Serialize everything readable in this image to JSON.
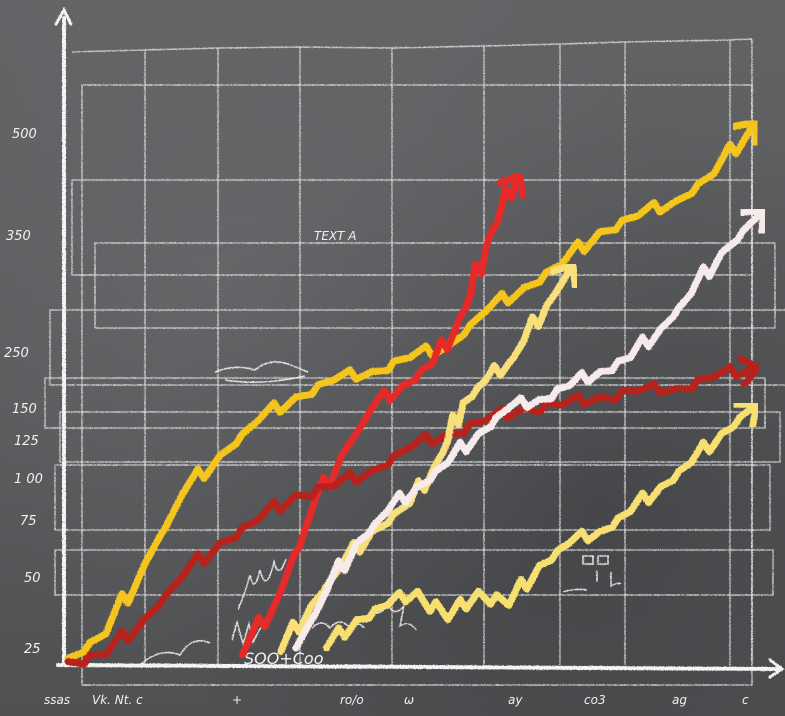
{
  "chart_data": {
    "type": "line",
    "style": "hand-drawn chalkboard",
    "background_color": "#5a5b5d",
    "grid": true,
    "legend": "none",
    "y_ticks": [
      {
        "label": "500",
        "value": 500
      },
      {
        "label": "350",
        "value": 350
      },
      {
        "label": "250",
        "value": 250
      },
      {
        "label": "150",
        "value": 150
      },
      {
        "label": "125",
        "value": 125
      },
      {
        "label": "1 00",
        "value": 100
      },
      {
        "label": "75",
        "value": 75
      },
      {
        "label": "50",
        "value": 50
      },
      {
        "label": "25",
        "value": 25
      }
    ],
    "x_tick_labels": [
      "ssas",
      "Vk. Nt. c",
      "+",
      "ro/o",
      "ω",
      "ay",
      "co3",
      "ag",
      "c"
    ],
    "annotations": [
      "TEXT A",
      "SOO+Coo"
    ],
    "series": [
      {
        "color": "#f4c51c",
        "arrow": true,
        "points": [
          [
            0,
            10
          ],
          [
            0.5,
            30
          ],
          [
            1,
            55
          ],
          [
            1.5,
            90
          ],
          [
            2,
            115
          ],
          [
            2.5,
            140
          ],
          [
            3,
            170
          ],
          [
            3.5,
            200
          ],
          [
            4,
            215
          ],
          [
            4.5,
            240
          ],
          [
            5,
            255
          ],
          [
            5.5,
            285
          ],
          [
            6,
            305
          ],
          [
            6.5,
            325
          ],
          [
            7,
            355
          ],
          [
            7.5,
            378
          ],
          [
            8,
            400
          ],
          [
            8.5,
            440
          ],
          [
            9,
            510
          ]
        ]
      },
      {
        "color": "#e62a2a",
        "arrow": true,
        "points": [
          [
            2.3,
            15
          ],
          [
            2.8,
            45
          ],
          [
            3.2,
            80
          ],
          [
            3.6,
            115
          ],
          [
            4.0,
            150
          ],
          [
            4.4,
            190
          ],
          [
            4.8,
            230
          ],
          [
            5.1,
            270
          ],
          [
            5.3,
            300
          ],
          [
            5.5,
            340
          ],
          [
            5.7,
            390
          ],
          [
            5.9,
            430
          ]
        ]
      },
      {
        "color": "#b8201c",
        "arrow": true,
        "points": [
          [
            0,
            5
          ],
          [
            0.5,
            15
          ],
          [
            1,
            35
          ],
          [
            1.5,
            50
          ],
          [
            2,
            65
          ],
          [
            2.5,
            75
          ],
          [
            3,
            90
          ],
          [
            3.5,
            95
          ],
          [
            4,
            105
          ],
          [
            4.5,
            120
          ],
          [
            5,
            130
          ],
          [
            5.5,
            140
          ],
          [
            6,
            150
          ],
          [
            6.5,
            155
          ],
          [
            7,
            170
          ],
          [
            7.5,
            180
          ],
          [
            8,
            185
          ],
          [
            8.5,
            205
          ],
          [
            9,
            220
          ]
        ]
      },
      {
        "color": "#f8df7a",
        "arrow": true,
        "points": [
          [
            2.8,
            20
          ],
          [
            3.2,
            40
          ],
          [
            3.6,
            55
          ],
          [
            4,
            70
          ],
          [
            4.5,
            85
          ],
          [
            4.8,
            105
          ],
          [
            5,
            125
          ],
          [
            5.2,
            160
          ],
          [
            5.5,
            200
          ],
          [
            5.8,
            230
          ],
          [
            6,
            260
          ],
          [
            6.3,
            290
          ],
          [
            6.6,
            320
          ]
        ]
      },
      {
        "color": "#f6eaea",
        "arrow": true,
        "points": [
          [
            3,
            25
          ],
          [
            3.4,
            45
          ],
          [
            3.8,
            65
          ],
          [
            4.2,
            80
          ],
          [
            4.6,
            95
          ],
          [
            5,
            110
          ],
          [
            5.4,
            130
          ],
          [
            5.8,
            150
          ],
          [
            6.2,
            165
          ],
          [
            6.6,
            190
          ],
          [
            7,
            215
          ],
          [
            7.4,
            240
          ],
          [
            7.8,
            270
          ],
          [
            8.2,
            300
          ],
          [
            8.6,
            335
          ],
          [
            9.1,
            380
          ]
        ]
      },
      {
        "color": "#f7df70",
        "arrow": true,
        "points": [
          [
            3.4,
            25
          ],
          [
            3.8,
            35
          ],
          [
            4.2,
            40
          ],
          [
            4.6,
            45
          ],
          [
            5,
            35
          ],
          [
            5.4,
            45
          ],
          [
            5.8,
            40
          ],
          [
            6.2,
            55
          ],
          [
            6.6,
            65
          ],
          [
            7,
            70
          ],
          [
            7.4,
            80
          ],
          [
            7.8,
            95
          ],
          [
            8.2,
            110
          ],
          [
            8.6,
            130
          ],
          [
            9.0,
            150
          ]
        ]
      }
    ]
  }
}
